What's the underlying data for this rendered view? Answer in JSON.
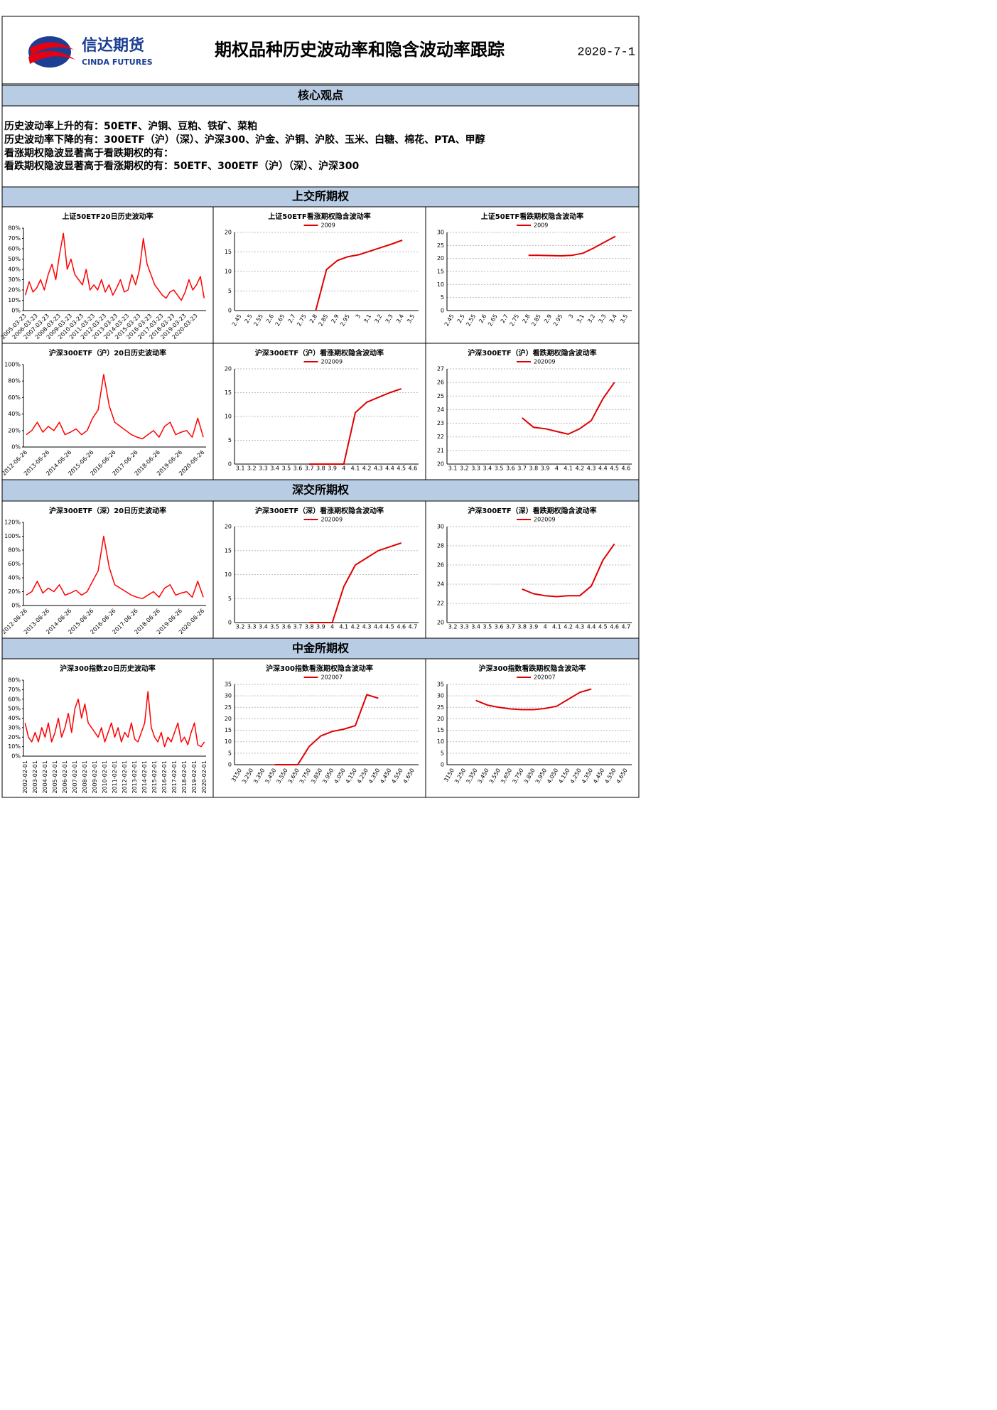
{
  "header": {
    "logo_cn": "信达期货",
    "logo_en": "CINDA FUTURES",
    "title": "期权品种历史波动率和隐含波动率跟踪",
    "date": "2020-7-1"
  },
  "sections": [
    "核心观点",
    "上交所期权",
    "深交所期权",
    "中金所期权"
  ],
  "core_view": [
    "历史波动率上升的有：50ETF、沪铜、豆粕、铁矿、菜粕",
    "历史波动率下降的有：300ETF（沪）（深）、沪深300、沪金、沪铜、沪胶、玉米、白糖、棉花、PTA、甲醇",
    "看涨期权隐波显著高于看跌期权的有：",
    "看跌期权隐波显著高于看涨期权的有：50ETF、300ETF（沪）（深）、沪深300"
  ],
  "chart_data": [
    {
      "type": "line",
      "title": "上证50ETF20日历史波动率",
      "color": "#ff0000",
      "categories": [
        "2005-03-23",
        null,
        null,
        "2006-03-23",
        null,
        null,
        "2007-03-23",
        null,
        null,
        "2008-03-23",
        null,
        null,
        "2009-03-23",
        null,
        null,
        "2010-03-23",
        null,
        null,
        "2011-03-23",
        null,
        null,
        "2012-03-23",
        null,
        null,
        "2013-03-23",
        null,
        null,
        "2014-03-23",
        null,
        null,
        "2015-03-23",
        null,
        null,
        "2016-03-23",
        null,
        null,
        "2017-03-23",
        null,
        null,
        "2018-03-23",
        null,
        null,
        "2019-03-23",
        null,
        null,
        "2020-03-23",
        null,
        null
      ],
      "values": [
        15,
        28,
        18,
        22,
        30,
        20,
        35,
        45,
        30,
        55,
        75,
        40,
        50,
        35,
        30,
        25,
        40,
        20,
        25,
        20,
        30,
        18,
        25,
        15,
        22,
        30,
        18,
        20,
        35,
        25,
        40,
        70,
        45,
        35,
        25,
        20,
        15,
        12,
        18,
        20,
        15,
        10,
        18,
        30,
        20,
        25,
        33,
        12
      ],
      "ylim": [
        0,
        80
      ],
      "yticks": [
        {
          "value": 0,
          "label": "0%"
        },
        {
          "value": 10,
          "label": "10%"
        },
        {
          "value": 20,
          "label": "20%"
        },
        {
          "value": 30,
          "label": "30%"
        },
        {
          "value": 40,
          "label": "40%"
        },
        {
          "value": 50,
          "label": "50%"
        },
        {
          "value": 60,
          "label": "60%"
        },
        {
          "value": 70,
          "label": "70%"
        },
        {
          "value": 80,
          "label": "80%"
        }
      ],
      "grid": false
    },
    {
      "type": "line",
      "title": "上证50ETF看涨期权隐含波动率",
      "grid": true,
      "categories": [
        "2.45",
        "2.5",
        "2.55",
        "2.6",
        "2.65",
        "2.7",
        "2.75",
        "2.8",
        "2.85",
        "2.9",
        "2.95",
        "3",
        "3.1",
        "3.2",
        "3.3",
        "3.4",
        "3.5"
      ],
      "series": [
        {
          "name": "2009",
          "color": "#e00000",
          "values": [
            null,
            null,
            null,
            null,
            null,
            null,
            null,
            0,
            10.5,
            12.8,
            13.8,
            14.3,
            15.2,
            16.1,
            17,
            18,
            null
          ]
        }
      ],
      "ylim": [
        0,
        20
      ],
      "yticks": [
        0,
        5,
        10,
        15,
        20
      ]
    },
    {
      "type": "line",
      "title": "上证50ETF看跌期权隐含波动率",
      "grid": true,
      "categories": [
        "2.45",
        "2.5",
        "2.55",
        "2.6",
        "2.65",
        "2.7",
        "2.75",
        "2.8",
        "2.85",
        "2.9",
        "2.95",
        "3",
        "3.1",
        "3.2",
        "3.3",
        "3.4",
        "3.5"
      ],
      "series": [
        {
          "name": "2009",
          "color": "#e00000",
          "values": [
            null,
            null,
            null,
            null,
            null,
            null,
            null,
            21.2,
            21.2,
            21.1,
            21,
            21.2,
            22,
            24,
            26.3,
            28.5,
            null
          ]
        }
      ],
      "ylim": [
        0,
        30
      ],
      "yticks": [
        0,
        5,
        10,
        15,
        20,
        25,
        30
      ]
    },
    {
      "type": "line",
      "title": "沪深300ETF（沪）20日历史波动率",
      "color": "#ff0000",
      "categories": [
        "2012-06-26",
        null,
        null,
        null,
        "2013-06-26",
        null,
        null,
        null,
        "2014-06-26",
        null,
        null,
        null,
        "2015-06-26",
        null,
        null,
        null,
        "2016-06-26",
        null,
        null,
        null,
        "2017-06-26",
        null,
        null,
        null,
        "2018-06-26",
        null,
        null,
        null,
        "2019-06-26",
        null,
        null,
        null,
        "2020-06-26"
      ],
      "values": [
        15,
        20,
        30,
        18,
        25,
        20,
        30,
        15,
        18,
        22,
        15,
        20,
        35,
        45,
        88,
        50,
        30,
        25,
        20,
        15,
        12,
        10,
        15,
        20,
        12,
        25,
        30,
        15,
        18,
        20,
        12,
        35,
        12
      ],
      "ylim": [
        0,
        100
      ],
      "yticks": [
        {
          "value": 0,
          "label": "0%"
        },
        {
          "value": 20,
          "label": "20%"
        },
        {
          "value": 40,
          "label": "40%"
        },
        {
          "value": 60,
          "label": "60%"
        },
        {
          "value": 80,
          "label": "80%"
        },
        {
          "value": 100,
          "label": "100%"
        }
      ],
      "grid": false
    },
    {
      "type": "line",
      "title": "沪深300ETF（沪）看涨期权隐含波动率",
      "grid": true,
      "categories": [
        "3.1",
        "3.2",
        "3.3",
        "3.4",
        "3.5",
        "3.6",
        "3.7",
        "3.8",
        "3.9",
        "4",
        "4.1",
        "4.2",
        "4.3",
        "4.4",
        "4.5",
        "4.6"
      ],
      "series": [
        {
          "name": "202009",
          "color": "#e00000",
          "values": [
            null,
            null,
            null,
            null,
            null,
            null,
            0,
            0,
            0,
            0,
            10.8,
            13,
            14,
            15,
            15.8,
            null
          ]
        }
      ],
      "ylim": [
        0,
        20
      ],
      "yticks": [
        0,
        5,
        10,
        15,
        20
      ]
    },
    {
      "type": "line",
      "title": "沪深300ETF（沪）看跌期权隐含波动率",
      "grid": true,
      "categories": [
        "3.1",
        "3.2",
        "3.3",
        "3.4",
        "3.5",
        "3.6",
        "3.7",
        "3.8",
        "3.9",
        "4",
        "4.1",
        "4.2",
        "4.3",
        "4.4",
        "4.5",
        "4.6"
      ],
      "series": [
        {
          "name": "202009",
          "color": "#e00000",
          "values": [
            null,
            null,
            null,
            null,
            null,
            null,
            23.4,
            22.7,
            22.6,
            22.4,
            22.2,
            22.6,
            23.2,
            24.8,
            26,
            null
          ]
        }
      ],
      "ylim": [
        20,
        27
      ],
      "yticks": [
        20,
        21,
        22,
        23,
        24,
        25,
        26,
        27
      ]
    },
    {
      "type": "line",
      "title": "沪深300ETF（深）20日历史波动率",
      "color": "#ff0000",
      "categories": [
        "2012-06-26",
        null,
        null,
        null,
        "2013-06-26",
        null,
        null,
        null,
        "2014-06-26",
        null,
        null,
        null,
        "2015-06-26",
        null,
        null,
        null,
        "2016-06-26",
        null,
        null,
        null,
        "2017-06-26",
        null,
        null,
        null,
        "2018-06-26",
        null,
        null,
        null,
        "2019-06-26",
        null,
        null,
        null,
        "2020-06-26"
      ],
      "values": [
        15,
        20,
        35,
        18,
        25,
        20,
        30,
        15,
        18,
        22,
        15,
        20,
        35,
        50,
        100,
        55,
        30,
        25,
        20,
        15,
        12,
        10,
        15,
        20,
        12,
        25,
        30,
        15,
        18,
        20,
        12,
        35,
        12
      ],
      "ylim": [
        0,
        120
      ],
      "yticks": [
        {
          "value": 0,
          "label": "0%"
        },
        {
          "value": 20,
          "label": "20%"
        },
        {
          "value": 40,
          "label": "40%"
        },
        {
          "value": 60,
          "label": "60%"
        },
        {
          "value": 80,
          "label": "80%"
        },
        {
          "value": 100,
          "label": "100%"
        },
        {
          "value": 120,
          "label": "120%"
        }
      ],
      "grid": false
    },
    {
      "type": "line",
      "title": "沪深300ETF（深）看涨期权隐含波动率",
      "grid": true,
      "categories": [
        "3.2",
        "3.3",
        "3.4",
        "3.5",
        "3.6",
        "3.7",
        "3.8",
        "3.9",
        "4",
        "4.1",
        "4.2",
        "4.3",
        "4.4",
        "4.5",
        "4.6",
        "4.7"
      ],
      "series": [
        {
          "name": "202009",
          "color": "#e00000",
          "values": [
            null,
            null,
            null,
            null,
            null,
            null,
            0,
            0,
            0,
            7.5,
            12,
            13.5,
            15,
            15.8,
            16.6,
            null
          ]
        }
      ],
      "ylim": [
        0,
        20
      ],
      "yticks": [
        0,
        5,
        10,
        15,
        20
      ]
    },
    {
      "type": "line",
      "title": "沪深300ETF（深）看跌期权隐含波动率",
      "grid": true,
      "categories": [
        "3.2",
        "3.3",
        "3.4",
        "3.5",
        "3.6",
        "3.7",
        "3.8",
        "3.9",
        "4",
        "4.1",
        "4.2",
        "4.3",
        "4.4",
        "4.5",
        "4.6",
        "4.7"
      ],
      "series": [
        {
          "name": "202009",
          "color": "#e00000",
          "values": [
            null,
            null,
            null,
            null,
            null,
            null,
            23.5,
            23,
            22.8,
            22.7,
            22.8,
            22.8,
            23.8,
            26.5,
            28.2,
            null
          ]
        }
      ],
      "ylim": [
        20,
        30
      ],
      "yticks": [
        20,
        22,
        24,
        26,
        28,
        30
      ]
    },
    {
      "type": "line",
      "title": "沪深300指数20日历史波动率",
      "color": "#ff0000",
      "categories": [
        "2002-02-01",
        null,
        null,
        "2003-02-01",
        null,
        null,
        "2004-02-01",
        null,
        null,
        "2005-02-01",
        null,
        null,
        "2006-02-01",
        null,
        null,
        "2007-02-01",
        null,
        null,
        "2008-02-01",
        null,
        null,
        "2009-02-01",
        null,
        null,
        "2010-02-01",
        null,
        null,
        "2011-02-01",
        null,
        null,
        "2012-02-01",
        null,
        null,
        "2013-02-01",
        null,
        null,
        "2014-02-01",
        null,
        null,
        "2015-02-01",
        null,
        null,
        "2016-02-01",
        null,
        null,
        "2017-02-01",
        null,
        null,
        "2018-02-01",
        null,
        null,
        "2019-02-01",
        null,
        null,
        "2020-02-01"
      ],
      "values": [
        35,
        20,
        15,
        25,
        15,
        30,
        20,
        35,
        15,
        25,
        40,
        20,
        30,
        45,
        25,
        50,
        60,
        40,
        55,
        35,
        30,
        25,
        20,
        30,
        15,
        25,
        35,
        20,
        30,
        15,
        25,
        20,
        35,
        18,
        15,
        25,
        35,
        68,
        30,
        20,
        15,
        25,
        10,
        20,
        15,
        25,
        35,
        15,
        20,
        12,
        25,
        35,
        12,
        10,
        15
      ],
      "ylim": [
        0,
        80
      ],
      "yticks": [
        {
          "value": 0,
          "label": "0%"
        },
        {
          "value": 10,
          "label": "10%"
        },
        {
          "value": 20,
          "label": "20%"
        },
        {
          "value": 30,
          "label": "30%"
        },
        {
          "value": 40,
          "label": "40%"
        },
        {
          "value": 50,
          "label": "50%"
        },
        {
          "value": 60,
          "label": "60%"
        },
        {
          "value": 70,
          "label": "70%"
        },
        {
          "value": 80,
          "label": "80%"
        }
      ],
      "grid": false
    },
    {
      "type": "line",
      "title": "沪深300指数看涨期权隐含波动率",
      "grid": true,
      "categories": [
        "3150",
        "3,250",
        "3,350",
        "3,450",
        "3,550",
        "3,650",
        "3,750",
        "3,850",
        "3,950",
        "4,050",
        "4,150",
        "4,250",
        "4,350",
        "4,450",
        "4,550",
        "4,650"
      ],
      "series": [
        {
          "name": "202007",
          "color": "#e00000",
          "values": [
            null,
            null,
            null,
            0,
            0,
            0,
            8,
            12.5,
            14.5,
            15.5,
            17,
            30.5,
            29,
            null,
            null,
            null
          ]
        }
      ],
      "ylim": [
        0,
        35
      ],
      "yticks": [
        0,
        5,
        10,
        15,
        20,
        25,
        30,
        35
      ]
    },
    {
      "type": "line",
      "title": "沪深300指数看跌期权隐含波动率",
      "grid": true,
      "categories": [
        "3150",
        "3,250",
        "3,350",
        "3,450",
        "3,550",
        "3,650",
        "3,750",
        "3,850",
        "3,950",
        "4,050",
        "4,150",
        "4,250",
        "4,350",
        "4,450",
        "4,550",
        "4,650"
      ],
      "series": [
        {
          "name": "202007",
          "color": "#e00000",
          "values": [
            null,
            null,
            28,
            26,
            25,
            24.3,
            24,
            24,
            24.5,
            25.5,
            28.5,
            31.5,
            33,
            null,
            null,
            null
          ]
        }
      ],
      "ylim": [
        0,
        35
      ],
      "yticks": [
        0,
        5,
        10,
        15,
        20,
        25,
        30,
        35
      ]
    }
  ]
}
